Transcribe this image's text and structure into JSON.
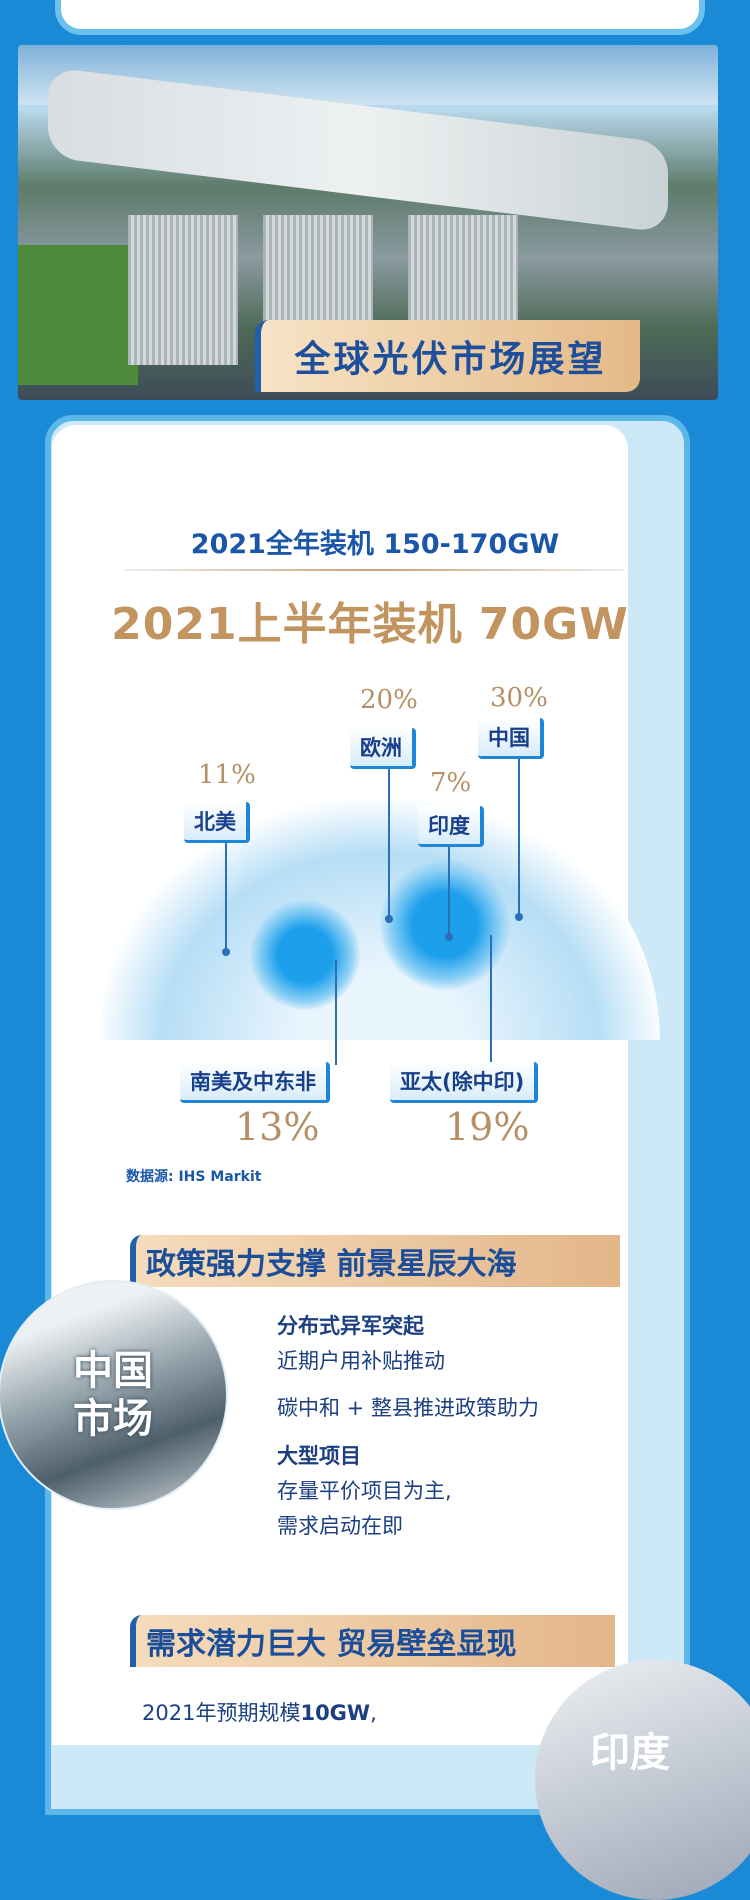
{
  "banner_title": "全球光伏市场展望",
  "annual_install": "2021全年装机 150-170GW",
  "half_year_install": "2021上半年装机 70GW",
  "regions": [
    {
      "name": "北美",
      "share": "11%"
    },
    {
      "name": "欧洲",
      "share": "20%"
    },
    {
      "name": "印度",
      "share": "7%"
    },
    {
      "name": "中国",
      "share": "30%"
    },
    {
      "name": "南美及中东非",
      "share": "13%"
    },
    {
      "name": "亚太(除中印)",
      "share": "19%"
    }
  ],
  "source": "数据源: IHS Markit",
  "china": {
    "section_title": "政策强力支撑 前景星辰大海",
    "circle_line1": "中国",
    "circle_line2": "市场",
    "items": [
      "分布式异军突起",
      "近期户用补贴推动",
      "碳中和 + 整县推进政策助力",
      "大型项目",
      "存量平价项目为主,",
      "需求启动在即"
    ]
  },
  "india": {
    "section_title": "需求潜力巨大 贸易壁垒显现",
    "text_prefix": "2021年预期规模",
    "text_value": "10GW",
    "text_suffix": ",",
    "circle_label": "印度"
  },
  "colors": {
    "background": "#1b8ad6",
    "title_blue": "#1b57a8",
    "gold": "#c2945f"
  }
}
